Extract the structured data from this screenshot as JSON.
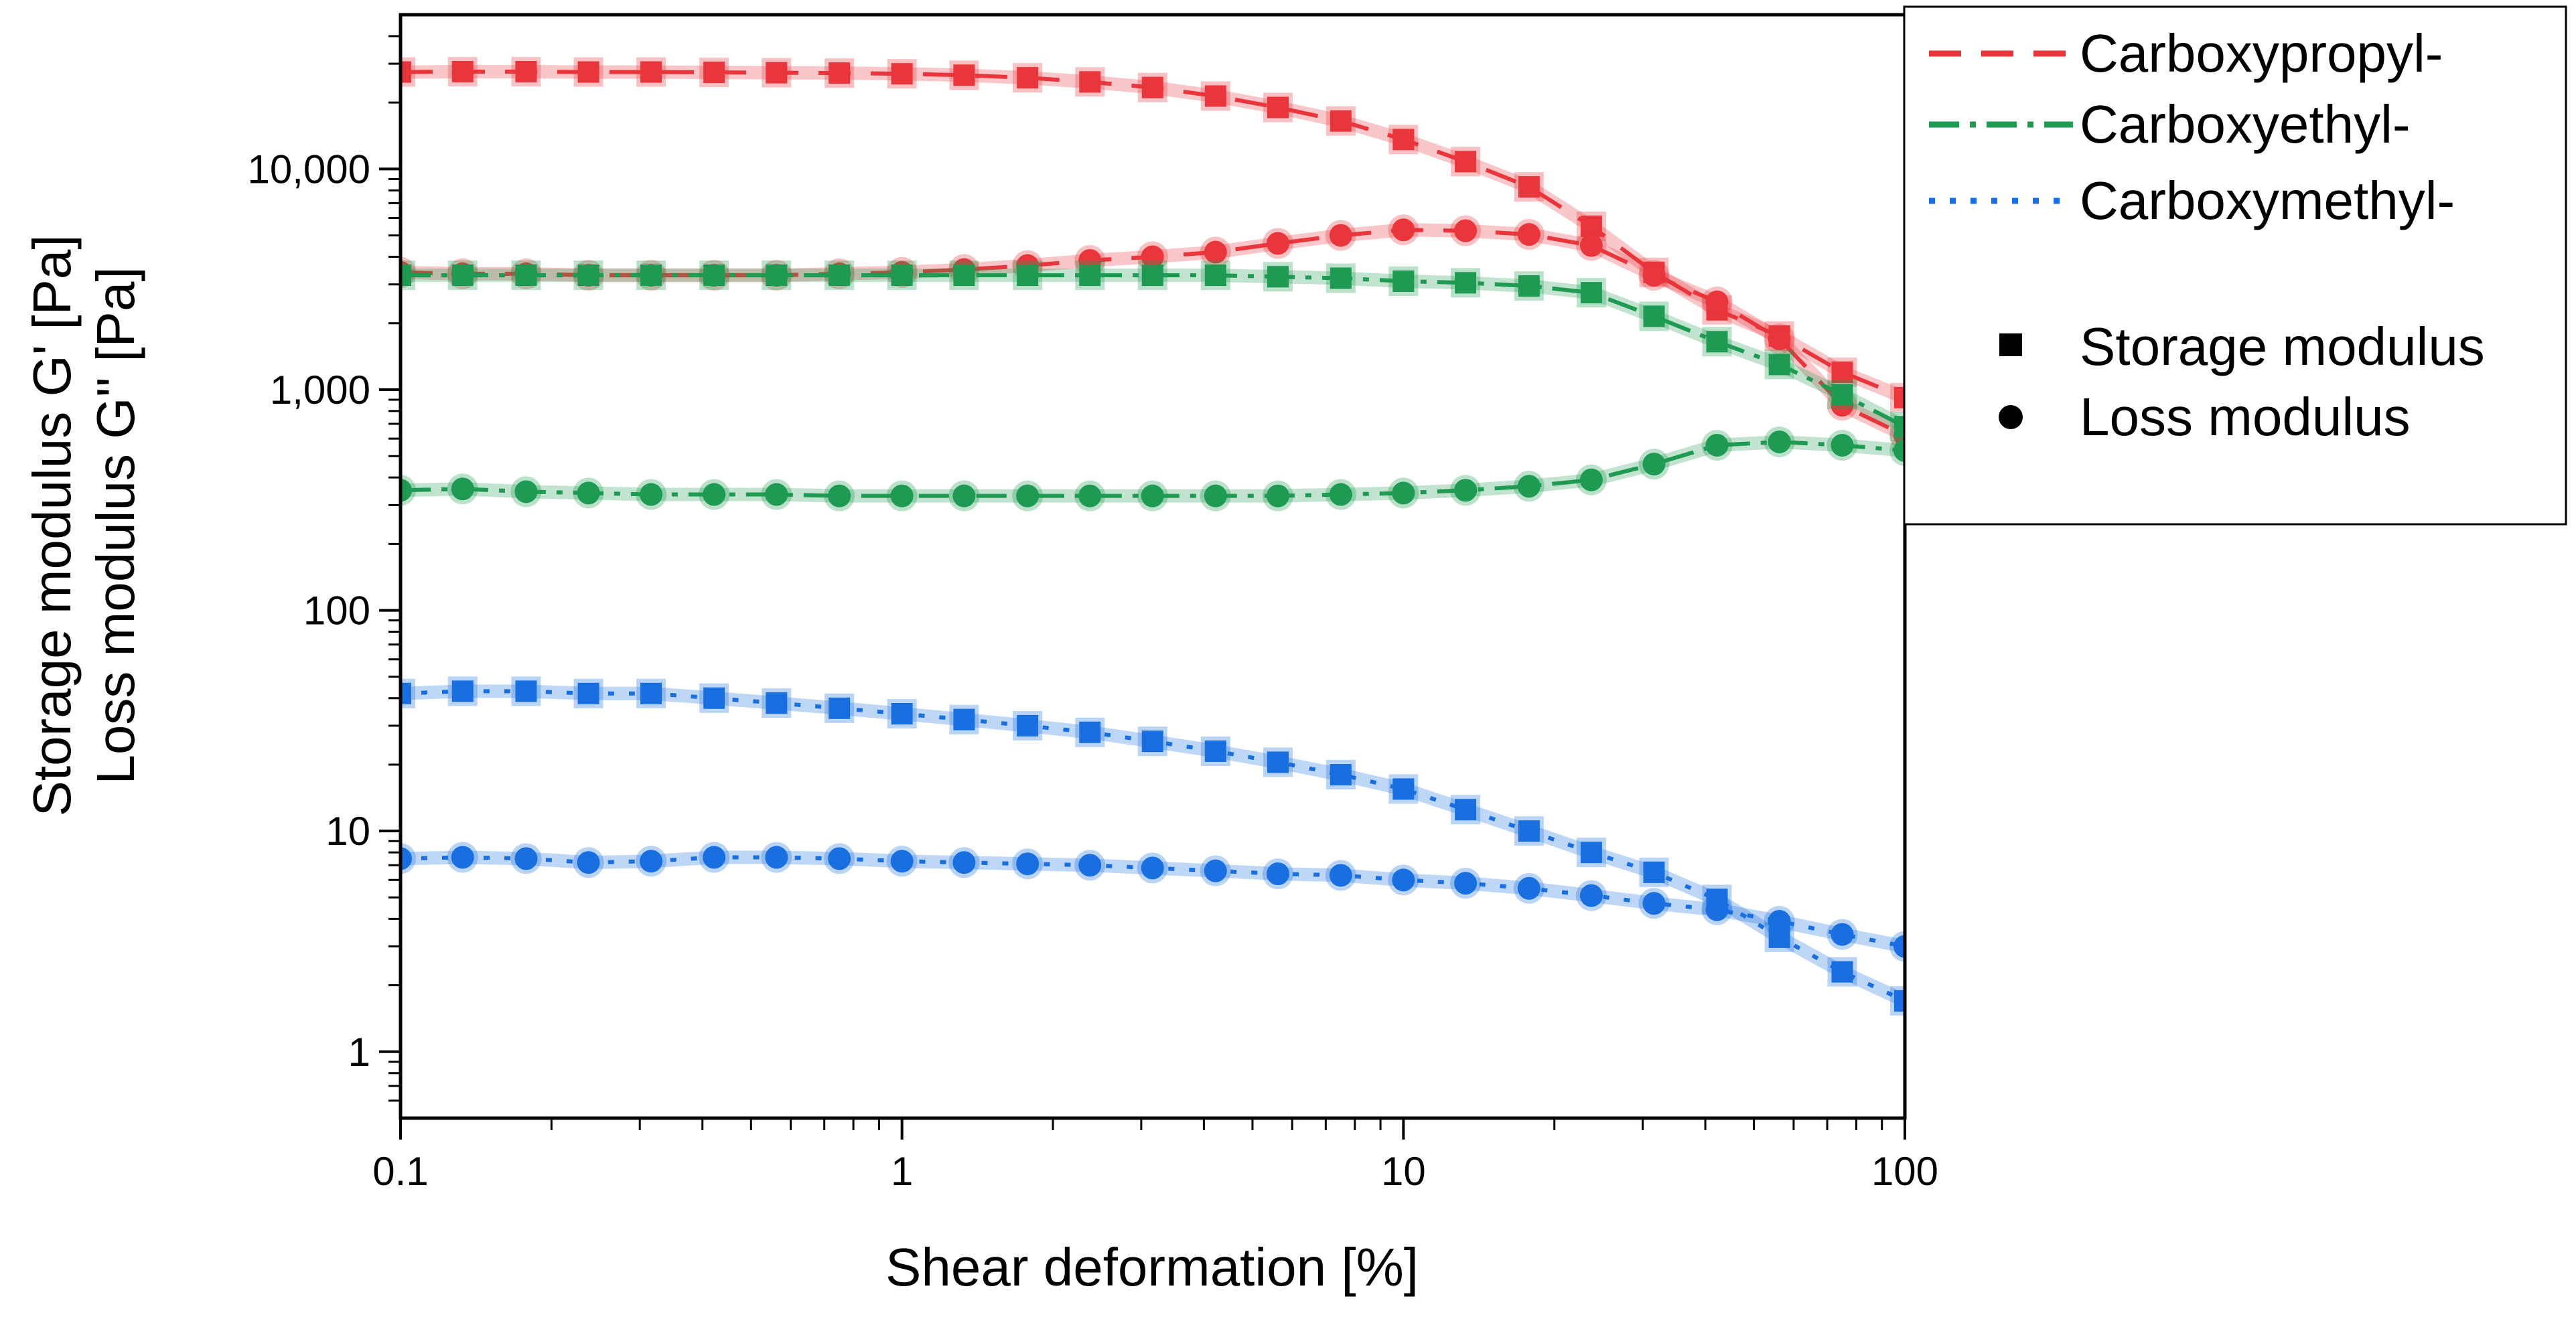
{
  "chart_data": {
    "type": "scatter",
    "title": "",
    "xlabel": "Shear deformation [%]",
    "ylabel_lines": [
      "Storage modulus G' [Pa]",
      "Loss modulus G'' [Pa]"
    ],
    "xscale": "log",
    "yscale": "log",
    "xlim": [
      0.1,
      100
    ],
    "ylim": [
      0.5,
      50000
    ],
    "x_ticks": [
      {
        "value": 0.1,
        "label": "0.1"
      },
      {
        "value": 1,
        "label": "1"
      },
      {
        "value": 10,
        "label": "10"
      },
      {
        "value": 100,
        "label": "100"
      }
    ],
    "y_ticks": [
      {
        "value": 1,
        "label": "1"
      },
      {
        "value": 10,
        "label": "10"
      },
      {
        "value": 100,
        "label": "100"
      },
      {
        "value": 1000,
        "label": "1,000"
      },
      {
        "value": 10000,
        "label": "10,000"
      }
    ],
    "grid": false,
    "legend_position": "top-right outside",
    "legend": {
      "lines": [
        {
          "label": "Carboxypropyl-",
          "color": "#e8363c",
          "dash": "dashed"
        },
        {
          "label": "Carboxyethyl-",
          "color": "#1f9a52",
          "dash": "dash-dot"
        },
        {
          "label": "Carboxymethyl-",
          "color": "#1a6fe0",
          "dash": "dotted"
        }
      ],
      "markers": [
        {
          "label": "Storage modulus",
          "marker": "square"
        },
        {
          "label": "Loss modulus",
          "marker": "circle"
        }
      ]
    },
    "x": [
      0.1,
      0.133,
      0.178,
      0.237,
      0.316,
      0.422,
      0.562,
      0.75,
      1.0,
      1.33,
      1.78,
      2.37,
      3.16,
      4.22,
      5.62,
      7.5,
      10.0,
      13.3,
      17.8,
      23.7,
      31.6,
      42.2,
      56.2,
      75.0,
      100.0
    ],
    "series": [
      {
        "name": "Carboxypropyl-",
        "property": "Storage modulus",
        "marker": "square",
        "color": "#e8363c",
        "dash": "dashed",
        "values": [
          27500,
          27600,
          27600,
          27500,
          27500,
          27400,
          27300,
          27200,
          27000,
          26600,
          25900,
          24800,
          23400,
          21400,
          19000,
          16500,
          13600,
          10800,
          8300,
          5500,
          3400,
          2300,
          1750,
          1200,
          920
        ]
      },
      {
        "name": "Carboxypropyl-",
        "property": "Loss modulus",
        "marker": "circle",
        "color": "#e8363c",
        "dash": "dashed",
        "values": [
          3400,
          3350,
          3350,
          3300,
          3300,
          3300,
          3300,
          3350,
          3400,
          3500,
          3650,
          3850,
          4000,
          4200,
          4600,
          5000,
          5300,
          5250,
          5050,
          4500,
          3300,
          2500,
          1700,
          850,
          620
        ]
      },
      {
        "name": "Carboxyethyl-",
        "property": "Storage modulus",
        "marker": "square",
        "color": "#1f9a52",
        "dash": "dash-dot",
        "values": [
          3300,
          3300,
          3300,
          3300,
          3300,
          3300,
          3300,
          3300,
          3300,
          3300,
          3300,
          3300,
          3300,
          3300,
          3250,
          3200,
          3100,
          3050,
          2950,
          2750,
          2150,
          1650,
          1300,
          950,
          680
        ]
      },
      {
        "name": "Carboxyethyl-",
        "property": "Loss modulus",
        "marker": "circle",
        "color": "#1f9a52",
        "dash": "dash-dot",
        "values": [
          350,
          355,
          345,
          340,
          335,
          335,
          335,
          330,
          330,
          330,
          330,
          330,
          330,
          330,
          330,
          335,
          340,
          350,
          365,
          390,
          460,
          560,
          580,
          560,
          530
        ]
      },
      {
        "name": "Carboxymethyl-",
        "property": "Storage modulus",
        "marker": "square",
        "color": "#1a6fe0",
        "dash": "dotted",
        "values": [
          42,
          43,
          43,
          42,
          42,
          40,
          38,
          36,
          34,
          32,
          30,
          28,
          25.5,
          23,
          20.5,
          18,
          15.5,
          12.5,
          10,
          8,
          6.5,
          4.9,
          3.3,
          2.3,
          1.7
        ]
      },
      {
        "name": "Carboxymethyl-",
        "property": "Loss modulus",
        "marker": "circle",
        "color": "#1a6fe0",
        "dash": "dotted",
        "values": [
          7.5,
          7.6,
          7.5,
          7.2,
          7.3,
          7.6,
          7.6,
          7.5,
          7.3,
          7.2,
          7.1,
          7.0,
          6.8,
          6.6,
          6.4,
          6.3,
          6.0,
          5.8,
          5.5,
          5.1,
          4.7,
          4.4,
          3.9,
          3.4,
          3.0
        ]
      }
    ]
  }
}
